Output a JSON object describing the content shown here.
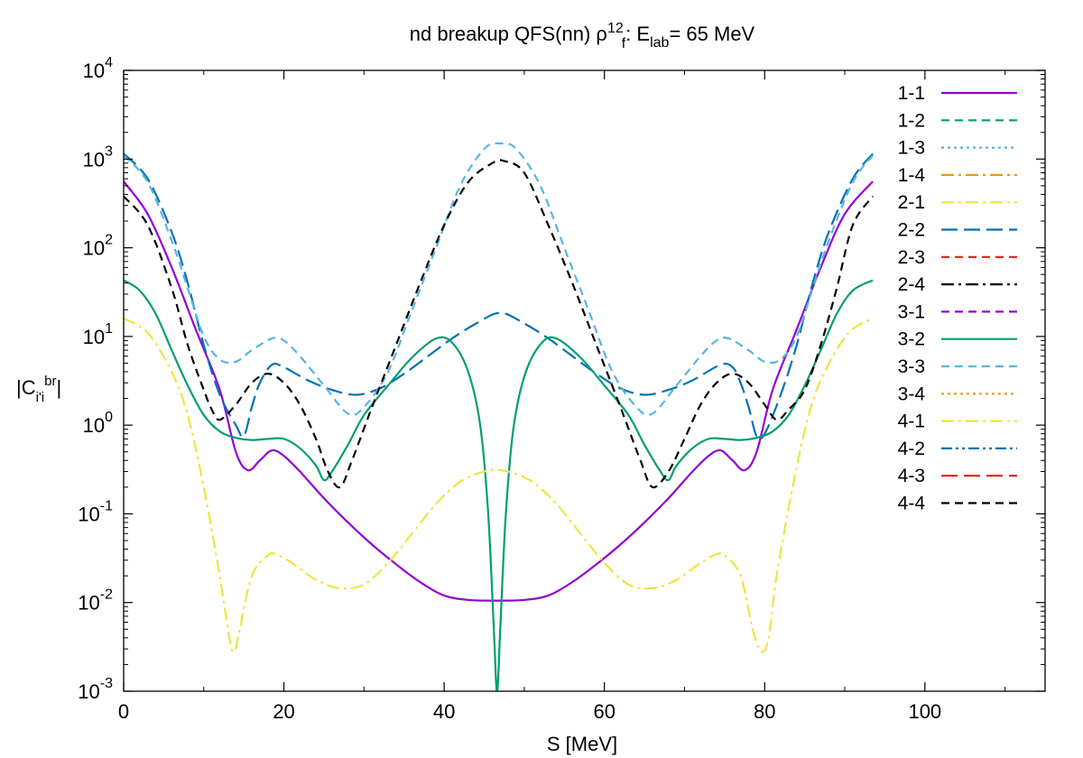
{
  "chart_data": {
    "type": "line",
    "title": "nd breakup QFS(nn) ρ^12_f: E_lab=   65 MeV",
    "title_parts": {
      "prefix": "nd breakup QFS(nn) ρ",
      "sup": "12",
      "sub": "f",
      "mid": ": E",
      "sub2": "lab",
      "suffix": "=   65 MeV"
    },
    "xlabel": "S [MeV]",
    "ylabel": "|C_i'i^br|",
    "ylabel_parts": {
      "open": "|C",
      "sub": "i'i",
      "sup": "br",
      "close": "|"
    },
    "xlim": [
      0,
      115
    ],
    "ylim": [
      0.001,
      10000
    ],
    "yscale": "log",
    "x_ticks": [
      "0",
      "20",
      "40",
      "60",
      "80",
      "100"
    ],
    "y_ticks": [
      {
        "base": "10",
        "exp": "-3"
      },
      {
        "base": "10",
        "exp": "-2"
      },
      {
        "base": "10",
        "exp": "-1"
      },
      {
        "base": "10",
        "exp": "0"
      },
      {
        "base": "10",
        "exp": "1"
      },
      {
        "base": "10",
        "exp": "2"
      },
      {
        "base": "10",
        "exp": "3"
      },
      {
        "base": "10",
        "exp": "4"
      }
    ],
    "grid": false,
    "legend_position": "top-right",
    "series": [
      {
        "name": "1-1",
        "color": "#9400d3",
        "dash": "solid",
        "points": [
          [
            0,
            560
          ],
          [
            3,
            240
          ],
          [
            6,
            60
          ],
          [
            9,
            12
          ],
          [
            12,
            2.5
          ],
          [
            14,
            0.5
          ],
          [
            15.5,
            0.31
          ],
          [
            17,
            0.4
          ],
          [
            18.5,
            0.52
          ],
          [
            20,
            0.45
          ],
          [
            22,
            0.3
          ],
          [
            25,
            0.15
          ],
          [
            28,
            0.08
          ],
          [
            31,
            0.045
          ],
          [
            34,
            0.027
          ],
          [
            37,
            0.017
          ],
          [
            40,
            0.012
          ],
          [
            43,
            0.0107
          ],
          [
            46.5,
            0.0105
          ],
          [
            50,
            0.0107
          ],
          [
            53,
            0.012
          ],
          [
            56,
            0.017
          ],
          [
            59,
            0.027
          ],
          [
            62,
            0.045
          ],
          [
            65,
            0.08
          ],
          [
            68,
            0.15
          ],
          [
            71,
            0.3
          ],
          [
            73,
            0.45
          ],
          [
            74.5,
            0.52
          ],
          [
            76,
            0.4
          ],
          [
            77.5,
            0.31
          ],
          [
            79,
            0.5
          ],
          [
            81,
            2.5
          ],
          [
            84,
            12
          ],
          [
            87,
            60
          ],
          [
            90,
            240
          ],
          [
            93.5,
            560
          ]
        ]
      },
      {
        "name": "1-2",
        "color": "#009e73",
        "dash": "dashed",
        "points": []
      },
      {
        "name": "1-3",
        "color": "#56b4e9",
        "dash": "dotted",
        "points": []
      },
      {
        "name": "1-4",
        "color": "#e69f00",
        "dash": "dashdot",
        "points": []
      },
      {
        "name": "2-1",
        "color": "#f0e442",
        "dash": "dashdot",
        "points": []
      },
      {
        "name": "2-2",
        "color": "#0072b2",
        "dash": "longdash",
        "points": [
          [
            0,
            1150
          ],
          [
            3,
            600
          ],
          [
            6,
            150
          ],
          [
            8,
            40
          ],
          [
            10,
            8
          ],
          [
            12,
            2.2
          ],
          [
            14,
            1.0
          ],
          [
            15,
            0.75
          ],
          [
            16,
            1.6
          ],
          [
            17,
            3
          ],
          [
            18.5,
            4.8
          ],
          [
            20,
            4.5
          ],
          [
            23,
            3.2
          ],
          [
            26,
            2.5
          ],
          [
            29,
            2.2
          ],
          [
            32,
            2.6
          ],
          [
            35,
            3.8
          ],
          [
            38,
            6
          ],
          [
            41,
            9.5
          ],
          [
            44,
            14
          ],
          [
            47,
            18.5
          ],
          [
            50,
            14
          ],
          [
            53,
            9.5
          ],
          [
            56,
            6
          ],
          [
            59,
            3.8
          ],
          [
            62,
            2.6
          ],
          [
            65,
            2.2
          ],
          [
            68,
            2.5
          ],
          [
            71,
            3.2
          ],
          [
            74.5,
            4.8
          ],
          [
            76,
            4.5
          ],
          [
            77,
            3
          ],
          [
            78,
            1.6
          ],
          [
            79,
            0.75
          ],
          [
            80,
            0.8
          ],
          [
            82,
            2.2
          ],
          [
            84,
            8
          ],
          [
            86,
            40
          ],
          [
            88,
            150
          ],
          [
            91,
            600
          ],
          [
            93.5,
            1150
          ]
        ]
      },
      {
        "name": "2-3",
        "color": "#e51e10",
        "dash": "dashed",
        "points": []
      },
      {
        "name": "2-4",
        "color": "#000000",
        "dash": "dashdot",
        "points": []
      },
      {
        "name": "3-1",
        "color": "#9400d3",
        "dash": "dashed",
        "points": []
      },
      {
        "name": "3-2",
        "color": "#009e73",
        "dash": "solid",
        "points": [
          [
            0,
            43
          ],
          [
            2,
            33
          ],
          [
            4,
            18
          ],
          [
            6,
            7
          ],
          [
            8,
            2.8
          ],
          [
            10,
            1.3
          ],
          [
            12,
            0.85
          ],
          [
            14,
            0.72
          ],
          [
            16,
            0.68
          ],
          [
            18,
            0.7
          ],
          [
            20,
            0.7
          ],
          [
            22,
            0.55
          ],
          [
            24,
            0.35
          ],
          [
            25,
            0.24
          ],
          [
            26,
            0.3
          ],
          [
            28,
            0.6
          ],
          [
            30,
            1.3
          ],
          [
            33,
            2.8
          ],
          [
            36,
            5.8
          ],
          [
            39,
            9.5
          ],
          [
            41,
            8.5
          ],
          [
            43,
            4
          ],
          [
            44.5,
            1
          ],
          [
            45.5,
            0.1
          ],
          [
            46.2,
            0.005
          ],
          [
            46.6,
            0.001
          ],
          [
            47,
            0.005
          ],
          [
            47.7,
            0.1
          ],
          [
            48.7,
            1
          ],
          [
            50.2,
            4
          ],
          [
            52.2,
            8.5
          ],
          [
            54,
            9.5
          ],
          [
            57,
            5.8
          ],
          [
            60,
            2.8
          ],
          [
            63,
            1.3
          ],
          [
            65,
            0.6
          ],
          [
            67,
            0.3
          ],
          [
            68,
            0.24
          ],
          [
            69,
            0.35
          ],
          [
            71,
            0.55
          ],
          [
            73,
            0.7
          ],
          [
            75,
            0.7
          ],
          [
            77,
            0.68
          ],
          [
            79,
            0.72
          ],
          [
            81,
            0.85
          ],
          [
            83,
            1.3
          ],
          [
            85,
            2.8
          ],
          [
            87,
            7
          ],
          [
            89,
            18
          ],
          [
            91,
            33
          ],
          [
            93.5,
            43
          ]
        ]
      },
      {
        "name": "3-3",
        "color": "#56b4e9",
        "dash": "dashed",
        "points": [
          [
            0,
            1100
          ],
          [
            3,
            550
          ],
          [
            6,
            120
          ],
          [
            8,
            35
          ],
          [
            10,
            10
          ],
          [
            12,
            5.5
          ],
          [
            14,
            5.2
          ],
          [
            16,
            7
          ],
          [
            18.5,
            9.5
          ],
          [
            20,
            9
          ],
          [
            22,
            6
          ],
          [
            25,
            2.8
          ],
          [
            28,
            1.35
          ],
          [
            30,
            1.6
          ],
          [
            33,
            4
          ],
          [
            36,
            20
          ],
          [
            39,
            100
          ],
          [
            42,
            500
          ],
          [
            45,
            1300
          ],
          [
            47,
            1500
          ],
          [
            49,
            1300
          ],
          [
            52,
            500
          ],
          [
            55,
            100
          ],
          [
            58,
            20
          ],
          [
            61,
            4
          ],
          [
            64,
            1.6
          ],
          [
            66,
            1.35
          ],
          [
            69,
            2.8
          ],
          [
            72,
            6
          ],
          [
            74,
            9
          ],
          [
            75.5,
            9.5
          ],
          [
            78,
            7
          ],
          [
            80,
            5.2
          ],
          [
            82,
            5.5
          ],
          [
            84,
            10
          ],
          [
            86,
            35
          ],
          [
            88,
            120
          ],
          [
            91,
            550
          ],
          [
            93.5,
            1100
          ]
        ]
      },
      {
        "name": "3-4",
        "color": "#e69f00",
        "dash": "dotted",
        "points": []
      },
      {
        "name": "4-1",
        "color": "#f0e442",
        "dash": "dashdot",
        "points": [
          [
            0,
            16
          ],
          [
            3,
            11
          ],
          [
            6,
            4
          ],
          [
            8,
            1.3
          ],
          [
            10,
            0.2
          ],
          [
            12,
            0.02
          ],
          [
            13.2,
            0.004
          ],
          [
            13.8,
            0.0028
          ],
          [
            14.5,
            0.005
          ],
          [
            16,
            0.02
          ],
          [
            18,
            0.034
          ],
          [
            19,
            0.035
          ],
          [
            21,
            0.028
          ],
          [
            24,
            0.018
          ],
          [
            27,
            0.0145
          ],
          [
            30,
            0.016
          ],
          [
            33,
            0.028
          ],
          [
            36,
            0.06
          ],
          [
            39,
            0.13
          ],
          [
            42,
            0.23
          ],
          [
            45,
            0.3
          ],
          [
            46.5,
            0.31
          ],
          [
            48,
            0.3
          ],
          [
            51,
            0.23
          ],
          [
            54,
            0.13
          ],
          [
            57,
            0.06
          ],
          [
            60,
            0.028
          ],
          [
            63,
            0.016
          ],
          [
            66,
            0.0145
          ],
          [
            69,
            0.018
          ],
          [
            72,
            0.028
          ],
          [
            74,
            0.035
          ],
          [
            75,
            0.034
          ],
          [
            77,
            0.02
          ],
          [
            78.5,
            0.005
          ],
          [
            79.6,
            0.0028
          ],
          [
            80.5,
            0.004
          ],
          [
            81.5,
            0.02
          ],
          [
            83.5,
            0.2
          ],
          [
            85.5,
            1.3
          ],
          [
            87.5,
            4
          ],
          [
            90.5,
            11
          ],
          [
            93.5,
            16
          ]
        ]
      },
      {
        "name": "4-2",
        "color": "#0072b2",
        "dash": "dashdotdot",
        "points": []
      },
      {
        "name": "4-3",
        "color": "#e51e10",
        "dash": "longdash",
        "points": []
      },
      {
        "name": "4-4",
        "color": "#000000",
        "dash": "dashed",
        "points": [
          [
            0,
            380
          ],
          [
            3,
            180
          ],
          [
            6,
            35
          ],
          [
            8,
            8
          ],
          [
            10,
            2.5
          ],
          [
            11,
            1.5
          ],
          [
            12,
            1.15
          ],
          [
            14,
            1.7
          ],
          [
            16,
            3
          ],
          [
            18,
            3.8
          ],
          [
            20,
            3
          ],
          [
            22,
            1.7
          ],
          [
            24,
            0.7
          ],
          [
            25.5,
            0.3
          ],
          [
            27,
            0.2
          ],
          [
            28.5,
            0.4
          ],
          [
            31,
            1.6
          ],
          [
            34,
            8
          ],
          [
            37,
            40
          ],
          [
            40,
            180
          ],
          [
            43,
            550
          ],
          [
            46,
            900
          ],
          [
            47.5,
            950
          ],
          [
            50,
            700
          ],
          [
            53,
            180
          ],
          [
            56,
            40
          ],
          [
            59,
            8
          ],
          [
            62,
            1.6
          ],
          [
            64.5,
            0.4
          ],
          [
            66,
            0.2
          ],
          [
            68,
            0.3
          ],
          [
            70,
            0.7
          ],
          [
            72,
            1.7
          ],
          [
            74,
            3
          ],
          [
            76,
            3.8
          ],
          [
            78,
            3
          ],
          [
            80,
            1.7
          ],
          [
            81.5,
            1.15
          ],
          [
            83,
            1.5
          ],
          [
            85,
            2.5
          ],
          [
            87,
            8
          ],
          [
            89,
            35
          ],
          [
            91,
            180
          ],
          [
            93.5,
            380
          ]
        ]
      }
    ]
  }
}
